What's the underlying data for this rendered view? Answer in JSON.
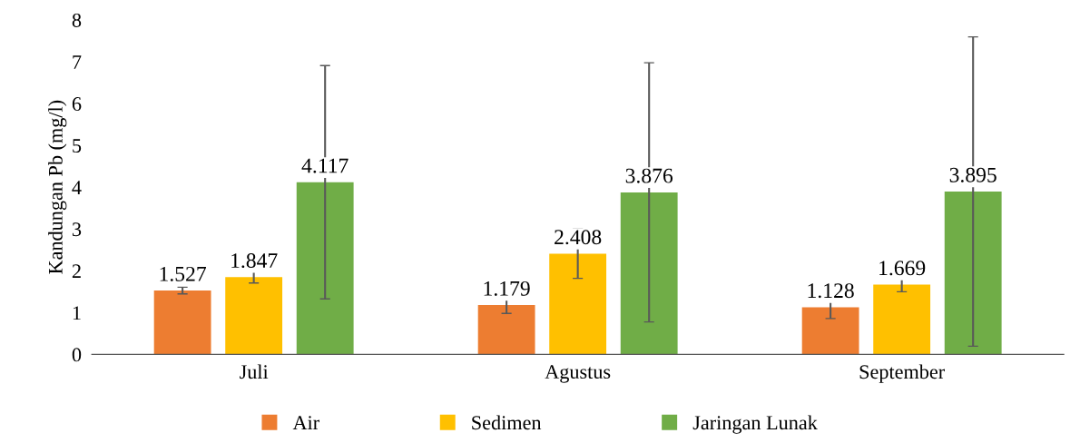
{
  "chart_data": {
    "type": "bar",
    "ylabel": "Kandungan Pb (mg/l)",
    "categories": [
      "Juli",
      "Agustus",
      "September"
    ],
    "series": [
      {
        "name": "Air",
        "color": "#ed7d31",
        "values": [
          1.527,
          1.179,
          1.128
        ],
        "errors": [
          0.08,
          0.2,
          0.27
        ]
      },
      {
        "name": "Sedimen",
        "color": "#ffc000",
        "values": [
          1.847,
          2.408,
          1.669
        ],
        "errors": [
          0.14,
          0.59,
          0.17
        ]
      },
      {
        "name": "Jaringan Lunak",
        "color": "#70ad47",
        "values": [
          4.117,
          3.876,
          3.895
        ],
        "errors": [
          2.79,
          3.1,
          3.7
        ]
      }
    ],
    "ylim": [
      0,
      8
    ],
    "yticks": [
      0,
      1,
      2,
      3,
      4,
      5,
      6,
      7,
      8
    ],
    "data_labels": true,
    "legend": "bottom"
  }
}
